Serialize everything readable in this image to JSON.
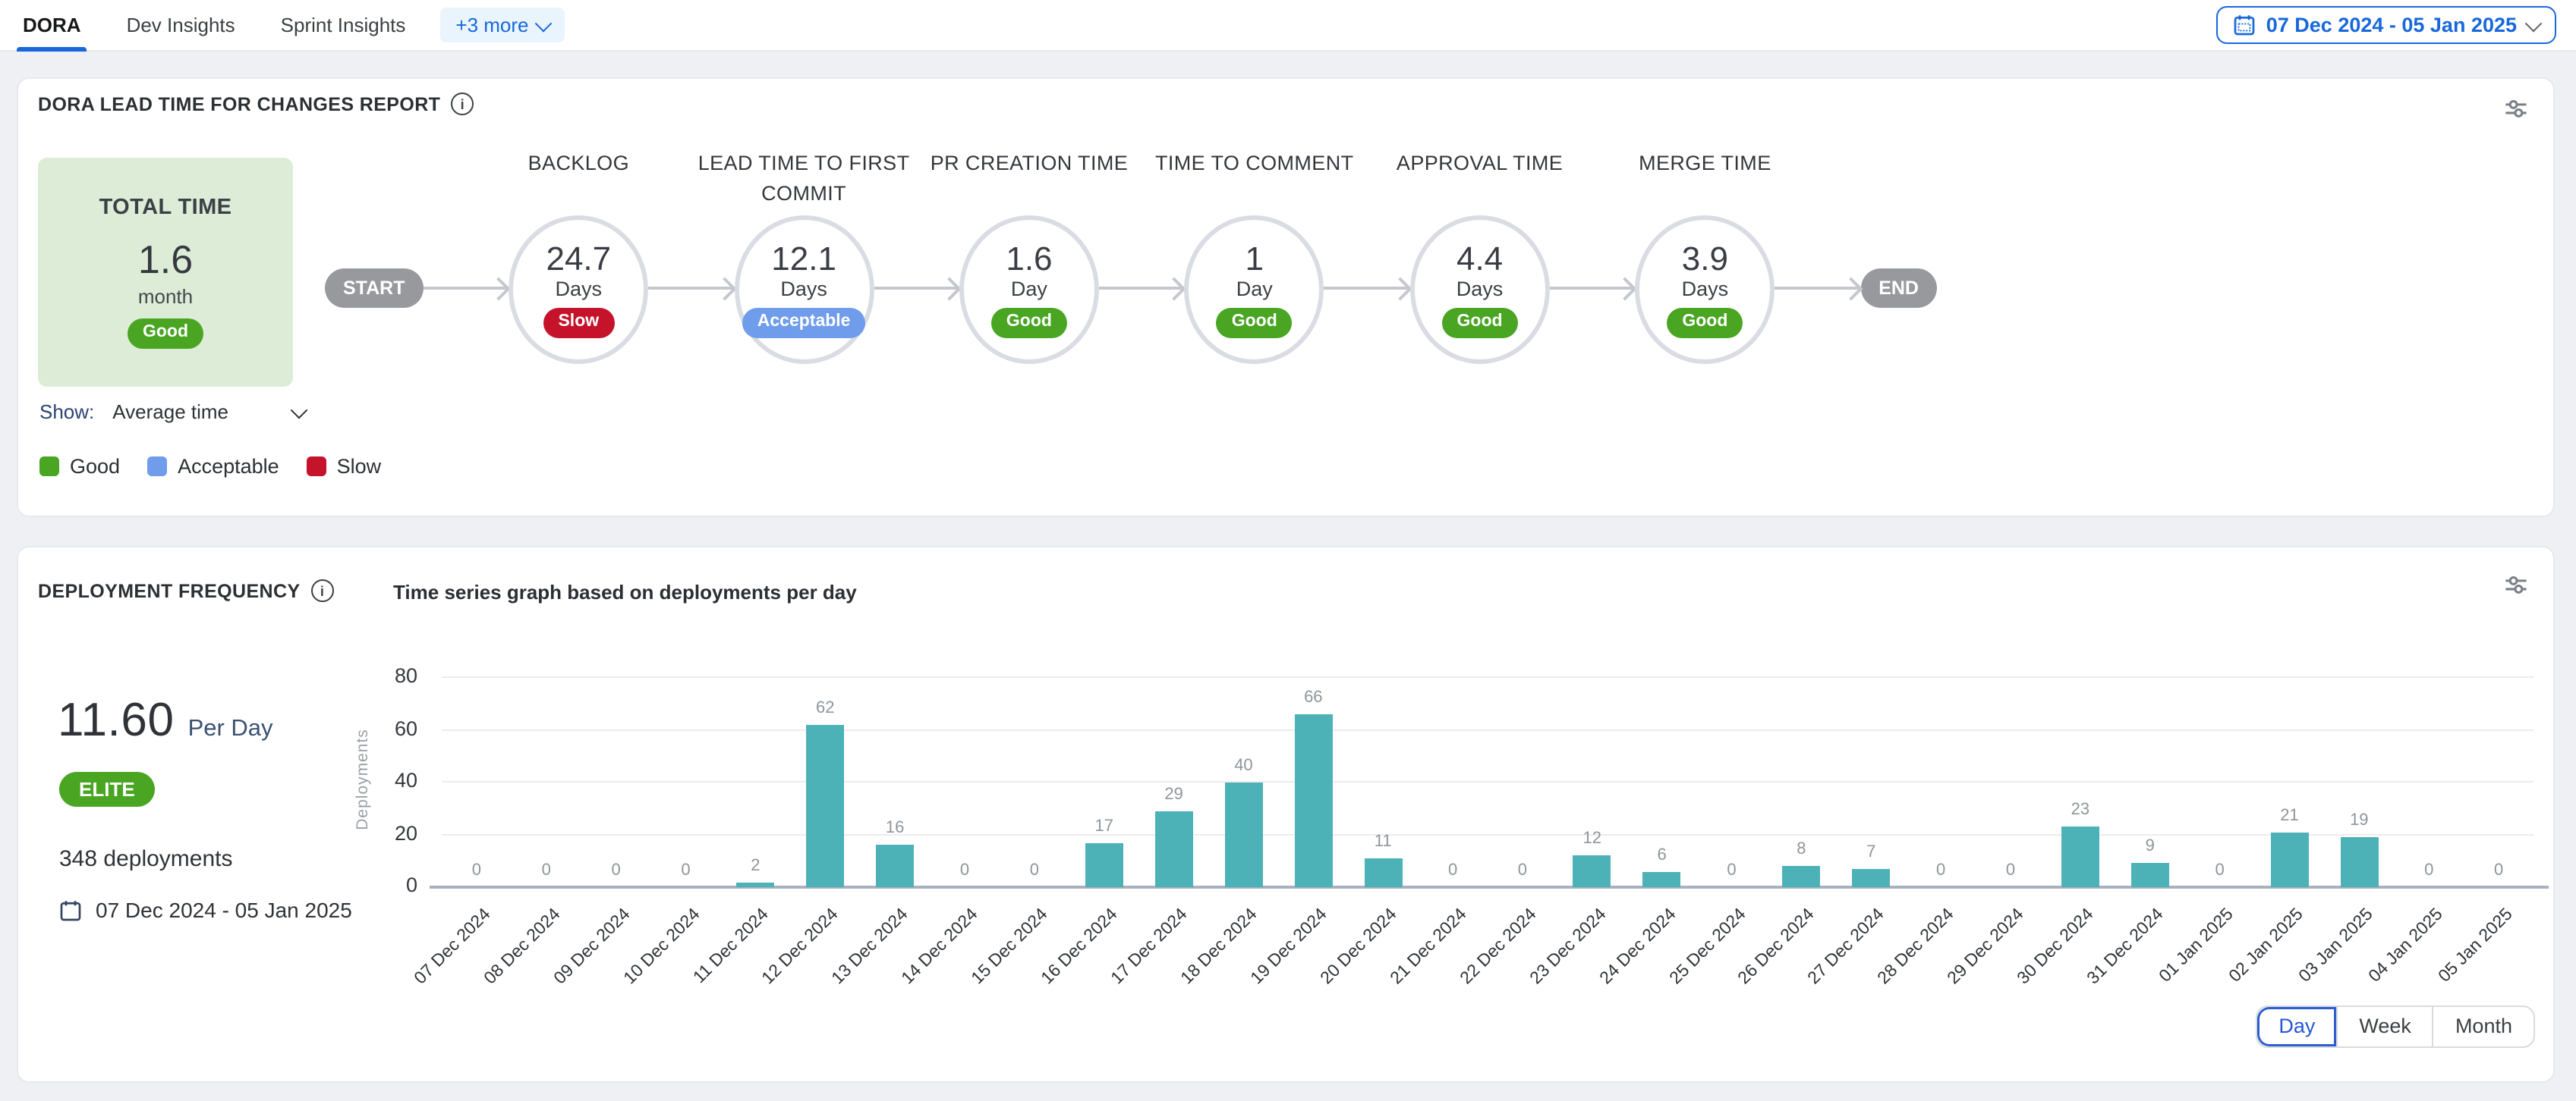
{
  "tabs": {
    "items": [
      {
        "label": "DORA",
        "active": true
      },
      {
        "label": "Dev Insights",
        "active": false
      },
      {
        "label": "Sprint Insights",
        "active": false
      }
    ],
    "more_label": "+3 more"
  },
  "date_picker": {
    "value": "07 Dec 2024 - 05 Jan 2025"
  },
  "colors": {
    "accent_blue": "#1868db",
    "bar": "#4db2b8",
    "status": {
      "Good": "#49a522",
      "Acceptable": "#6f9ceb",
      "Slow": "#c5132b",
      "ELITE": "#49a522"
    }
  },
  "lead_time_panel": {
    "title": "DORA LEAD TIME FOR CHANGES REPORT",
    "total": {
      "label": "TOTAL TIME",
      "value": "1.6",
      "unit": "month",
      "status": "Good"
    },
    "flow_start_label": "START",
    "flow_end_label": "END",
    "stages": [
      {
        "name": "BACKLOG",
        "value": "24.7",
        "unit": "Days",
        "status": "Slow"
      },
      {
        "name": "LEAD TIME TO FIRST COMMIT",
        "value": "12.1",
        "unit": "Days",
        "status": "Acceptable"
      },
      {
        "name": "PR CREATION TIME",
        "value": "1.6",
        "unit": "Day",
        "status": "Good"
      },
      {
        "name": "TIME TO COMMENT",
        "value": "1",
        "unit": "Day",
        "status": "Good"
      },
      {
        "name": "APPROVAL TIME",
        "value": "4.4",
        "unit": "Days",
        "status": "Good"
      },
      {
        "name": "MERGE TIME",
        "value": "3.9",
        "unit": "Days",
        "status": "Good"
      }
    ],
    "show_label": "Show:",
    "show_value": "Average time",
    "legend": [
      {
        "label": "Good",
        "status": "Good"
      },
      {
        "label": "Acceptable",
        "status": "Acceptable"
      },
      {
        "label": "Slow",
        "status": "Slow"
      }
    ]
  },
  "deployment_panel": {
    "title": "DEPLOYMENT FREQUENCY",
    "subtitle": "Time series graph based on deployments per day",
    "rate_value": "11.60",
    "rate_unit": "Per Day",
    "tier": "ELITE",
    "total_label": "348 deployments",
    "date_range": "07 Dec 2024 - 05 Jan 2025",
    "granularity": {
      "options": [
        "Day",
        "Week",
        "Month"
      ],
      "selected": "Day"
    }
  },
  "chart_data": {
    "type": "bar",
    "title": "Time series graph based on deployments per day",
    "xlabel": "",
    "ylabel": "Deployments",
    "ylim": [
      0,
      80
    ],
    "yticks": [
      0,
      20,
      40,
      60,
      80
    ],
    "grid": true,
    "legend_position": "none",
    "categories": [
      "07 Dec 2024",
      "08 Dec 2024",
      "09 Dec 2024",
      "10 Dec 2024",
      "11 Dec 2024",
      "12 Dec 2024",
      "13 Dec 2024",
      "14 Dec 2024",
      "15 Dec 2024",
      "16 Dec 2024",
      "17 Dec 2024",
      "18 Dec 2024",
      "19 Dec 2024",
      "20 Dec 2024",
      "21 Dec 2024",
      "22 Dec 2024",
      "23 Dec 2024",
      "24 Dec 2024",
      "25 Dec 2024",
      "26 Dec 2024",
      "27 Dec 2024",
      "28 Dec 2024",
      "29 Dec 2024",
      "30 Dec 2024",
      "31 Dec 2024",
      "01 Jan 2025",
      "02 Jan 2025",
      "03 Jan 2025",
      "04 Jan 2025",
      "05 Jan 2025"
    ],
    "values": [
      0,
      0,
      0,
      0,
      2,
      62,
      16,
      0,
      0,
      17,
      29,
      40,
      66,
      11,
      0,
      0,
      12,
      6,
      0,
      8,
      7,
      0,
      0,
      23,
      9,
      0,
      21,
      19,
      0,
      0
    ]
  }
}
